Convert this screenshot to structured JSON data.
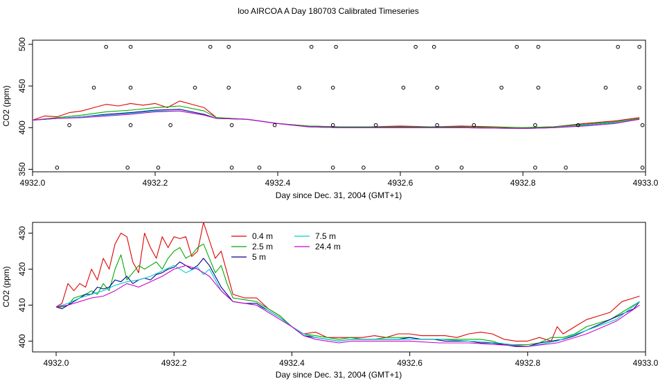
{
  "figure": {
    "title": "loo AIRCOA A  Day 180703  Calibrated Timeseries"
  },
  "chart_data": [
    {
      "type": "line",
      "title": "loo AIRCOA A  Day 180703  Calibrated Timeseries",
      "xlabel": "Day since Dec. 31, 2004 (GMT+1)",
      "ylabel": "CO2 (ppm)",
      "xlim": [
        4932.0,
        4933.0
      ],
      "ylim": [
        347,
        505
      ],
      "xticks": [
        "4932.0",
        "4932.2",
        "4932.4",
        "4932.6",
        "4932.8",
        "4933.0"
      ],
      "yticks": [
        "350",
        "400",
        "450",
        "500"
      ],
      "grid": false,
      "series": [
        {
          "name": "0.4 m",
          "color": "#dd0000",
          "x": [
            4932.0,
            4932.02,
            4932.04,
            4932.06,
            4932.08,
            4932.1,
            4932.12,
            4932.14,
            4932.16,
            4932.18,
            4932.2,
            4932.22,
            4932.24,
            4932.26,
            4932.28,
            4932.3,
            4932.35,
            4932.4,
            4932.45,
            4932.5,
            4932.55,
            4932.6,
            4932.65,
            4932.7,
            4932.75,
            4932.8,
            4932.85,
            4932.9,
            4932.95,
            4932.99
          ],
          "y": [
            409,
            414,
            413,
            418,
            420,
            424,
            428,
            426,
            429,
            427,
            429,
            424,
            432,
            428,
            424,
            412,
            410,
            405,
            402,
            401,
            401,
            402,
            401,
            402,
            401,
            400,
            401,
            405,
            408,
            412
          ]
        },
        {
          "name": "2.5 m",
          "color": "#00aa00",
          "x": [
            4932.0,
            4932.04,
            4932.08,
            4932.12,
            4932.16,
            4932.2,
            4932.24,
            4932.28,
            4932.3,
            4932.35,
            4932.4,
            4932.45,
            4932.5,
            4932.6,
            4932.7,
            4932.8,
            4932.85,
            4932.9,
            4932.95,
            4932.99
          ],
          "y": [
            409,
            412,
            415,
            419,
            421,
            424,
            426,
            420,
            412,
            410,
            405,
            402,
            401,
            401,
            401,
            400,
            401,
            404,
            407,
            411
          ]
        },
        {
          "name": "5 m",
          "color": "#00008b",
          "x": [
            4932.0,
            4932.04,
            4932.08,
            4932.12,
            4932.16,
            4932.2,
            4932.24,
            4932.28,
            4932.3,
            4932.35,
            4932.4,
            4932.45,
            4932.5,
            4932.6,
            4932.7,
            4932.8,
            4932.85,
            4932.9,
            4932.95,
            4932.99
          ],
          "y": [
            409,
            411,
            413,
            416,
            418,
            421,
            422,
            416,
            411,
            410,
            405,
            401,
            400,
            400,
            400,
            399,
            400,
            403,
            406,
            410
          ]
        },
        {
          "name": "7.5 m",
          "color": "#00cccc",
          "x": [
            4932.0,
            4932.04,
            4932.08,
            4932.12,
            4932.16,
            4932.2,
            4932.24,
            4932.28,
            4932.3,
            4932.35,
            4932.4,
            4932.45,
            4932.5,
            4932.6,
            4932.7,
            4932.8,
            4932.85,
            4932.9,
            4932.95,
            4932.99
          ],
          "y": [
            409,
            411,
            413,
            415,
            417,
            420,
            420,
            415,
            411,
            410,
            405,
            401,
            400,
            400,
            400,
            399,
            400,
            403,
            406,
            410
          ]
        },
        {
          "name": "24.4 m",
          "color": "#cc00cc",
          "x": [
            4932.0,
            4932.04,
            4932.08,
            4932.12,
            4932.16,
            4932.2,
            4932.24,
            4932.28,
            4932.3,
            4932.35,
            4932.4,
            4932.45,
            4932.5,
            4932.6,
            4932.7,
            4932.8,
            4932.85,
            4932.9,
            4932.95,
            4932.99
          ],
          "y": [
            409,
            411,
            412,
            414,
            416,
            419,
            420,
            415,
            411,
            410,
            405,
            401,
            400,
            400,
            400,
            399,
            400,
            402,
            405,
            410
          ]
        },
        {
          "name": "",
          "type": "scatter",
          "marker": "open-circle",
          "color": "#000000",
          "x": [
            4932.04,
            4932.06,
            4932.1,
            4932.12,
            4932.155,
            4932.16,
            4932.16,
            4932.16,
            4932.205,
            4932.225,
            4932.265,
            4932.29,
            4932.32,
            4932.32,
            4932.325,
            4932.325,
            4932.37,
            4932.395,
            4932.435,
            4932.455,
            4932.49,
            4932.49,
            4932.49,
            4932.495,
            4932.54,
            4932.56,
            4932.605,
            4932.625,
            4932.655,
            4932.66,
            4932.66,
            4932.66,
            4932.7,
            4932.72,
            4932.765,
            4932.79,
            4932.82,
            4932.82,
            4932.825,
            4932.825,
            4932.87,
            4932.89,
            4932.935,
            4932.955,
            4932.99,
            4932.99,
            4932.995,
            4932.995
          ],
          "y": [
            352,
            403,
            448,
            497,
            352,
            403,
            448,
            497,
            352,
            403,
            448,
            497,
            497,
            448,
            403,
            352,
            352,
            403,
            448,
            497,
            352,
            403,
            448,
            497,
            352,
            403,
            448,
            497,
            497,
            448,
            403,
            352,
            352,
            403,
            448,
            497,
            352,
            403,
            448,
            497,
            352,
            403,
            448,
            497,
            497,
            448,
            403,
            352
          ]
        }
      ]
    },
    {
      "type": "line",
      "xlabel": "Day since Dec. 31, 2004 (GMT+1)",
      "ylabel": "CO2 (ppm)",
      "xlim": [
        4931.96,
        4933.0
      ],
      "ylim": [
        397,
        433
      ],
      "xticks": [
        "4932.0",
        "4932.2",
        "4932.4",
        "4932.6",
        "4932.8",
        "4933.0"
      ],
      "yticks": [
        "400",
        "410",
        "420",
        "430"
      ],
      "grid": false,
      "legend": "top-center",
      "series": [
        {
          "name": "0.4 m",
          "color": "#dd0000",
          "x": [
            4932.0,
            4932.01,
            4932.02,
            4932.03,
            4932.04,
            4932.05,
            4932.06,
            4932.07,
            4932.08,
            4932.09,
            4932.1,
            4932.11,
            4932.12,
            4932.13,
            4932.14,
            4932.15,
            4932.16,
            4932.17,
            4932.18,
            4932.19,
            4932.2,
            4932.21,
            4932.22,
            4932.23,
            4932.24,
            4932.25,
            4932.26,
            4932.27,
            4932.28,
            4932.29,
            4932.3,
            4932.32,
            4932.34,
            4932.36,
            4932.38,
            4932.4,
            4932.42,
            4932.44,
            4932.46,
            4932.48,
            4932.5,
            4932.52,
            4932.54,
            4932.56,
            4932.58,
            4932.6,
            4932.62,
            4932.64,
            4932.66,
            4932.68,
            4932.7,
            4932.72,
            4932.74,
            4932.76,
            4932.78,
            4932.8,
            4932.82,
            4932.84,
            4932.85,
            4932.86,
            4932.88,
            4932.9,
            4932.92,
            4932.94,
            4932.96,
            4932.98,
            4932.99
          ],
          "y": [
            409.5,
            410.5,
            416,
            414,
            416,
            415,
            420,
            417,
            423,
            420,
            427,
            430,
            429,
            422,
            419,
            430,
            426,
            423,
            429,
            426,
            429,
            428.5,
            429,
            423.5,
            425,
            433,
            428,
            423,
            425,
            419,
            413,
            412,
            412,
            409,
            407,
            404,
            402,
            402.5,
            401,
            401,
            401,
            401,
            401.5,
            401,
            402,
            402,
            401.5,
            401.5,
            401.5,
            401,
            402,
            402.5,
            402,
            400.5,
            400,
            400,
            401,
            400,
            404,
            402,
            404,
            406,
            407,
            408,
            411,
            412,
            412.5
          ]
        },
        {
          "name": "2.5 m",
          "color": "#00aa00",
          "x": [
            4932.0,
            4932.01,
            4932.02,
            4932.03,
            4932.04,
            4932.05,
            4932.06,
            4932.07,
            4932.08,
            4932.09,
            4932.1,
            4932.11,
            4932.12,
            4932.13,
            4932.14,
            4932.15,
            4932.16,
            4932.17,
            4932.18,
            4932.19,
            4932.2,
            4932.21,
            4932.22,
            4932.23,
            4932.24,
            4932.25,
            4932.26,
            4932.27,
            4932.28,
            4932.29,
            4932.3,
            4932.32,
            4932.34,
            4932.36,
            4932.38,
            4932.4,
            4932.42,
            4932.44,
            4932.46,
            4932.48,
            4932.5,
            4932.52,
            4932.54,
            4932.56,
            4932.58,
            4932.6,
            4932.62,
            4932.64,
            4932.66,
            4932.68,
            4932.7,
            4932.72,
            4932.74,
            4932.76,
            4932.78,
            4932.8,
            4932.82,
            4932.84,
            4932.86,
            4932.88,
            4932.9,
            4932.92,
            4932.94,
            4932.96,
            4932.98,
            4932.99
          ],
          "y": [
            409.5,
            409.5,
            410,
            412,
            412.5,
            413,
            414,
            413,
            416,
            414,
            420,
            424,
            417,
            419,
            421,
            420,
            421,
            422,
            420,
            423,
            425,
            426,
            423,
            424,
            426,
            427,
            423,
            419,
            421,
            416,
            412,
            411.5,
            411,
            409,
            407,
            404,
            402,
            401.5,
            401,
            400.5,
            401,
            400.5,
            400.5,
            401,
            401,
            401,
            400.5,
            400.5,
            400.5,
            400.5,
            400.5,
            400.5,
            400,
            399,
            399,
            399,
            399.5,
            401,
            401,
            402,
            404,
            405,
            406,
            408,
            410,
            411
          ]
        },
        {
          "name": "5 m",
          "color": "#00008b",
          "x": [
            4932.0,
            4932.01,
            4932.02,
            4932.03,
            4932.04,
            4932.05,
            4932.06,
            4932.07,
            4932.08,
            4932.09,
            4932.1,
            4932.11,
            4932.12,
            4932.13,
            4932.14,
            4932.15,
            4932.16,
            4932.17,
            4932.18,
            4932.19,
            4932.2,
            4932.21,
            4932.22,
            4932.23,
            4932.24,
            4932.25,
            4932.26,
            4932.27,
            4932.28,
            4932.29,
            4932.3,
            4932.32,
            4932.34,
            4932.36,
            4932.38,
            4932.4,
            4932.42,
            4932.44,
            4932.46,
            4932.48,
            4932.5,
            4932.52,
            4932.54,
            4932.56,
            4932.58,
            4932.6,
            4932.62,
            4932.64,
            4932.66,
            4932.68,
            4932.7,
            4932.72,
            4932.74,
            4932.76,
            4932.78,
            4932.8,
            4932.82,
            4932.84,
            4932.86,
            4932.88,
            4932.9,
            4932.92,
            4932.94,
            4932.96,
            4932.98,
            4932.99
          ],
          "y": [
            409.5,
            409,
            410,
            411,
            412,
            413,
            413,
            415,
            414.5,
            415,
            417,
            416.5,
            418,
            416,
            417,
            417.5,
            417,
            418.5,
            419,
            420,
            420.5,
            422,
            421,
            420,
            421,
            423,
            421,
            418,
            415,
            413,
            411,
            410.5,
            410.5,
            408.5,
            406.5,
            404,
            401.5,
            401,
            400.5,
            400,
            400.5,
            400.5,
            400.5,
            400.5,
            400.5,
            401,
            400.5,
            400.5,
            400,
            400,
            400,
            399.5,
            399.5,
            399,
            398.5,
            398.5,
            399.5,
            400,
            400.5,
            401.5,
            403,
            404.5,
            406,
            407.5,
            409,
            411
          ]
        },
        {
          "name": "7.5 m",
          "color": "#00cccc",
          "x": [
            4932.0,
            4932.02,
            4932.04,
            4932.06,
            4932.08,
            4932.1,
            4932.12,
            4932.14,
            4932.16,
            4932.18,
            4932.2,
            4932.22,
            4932.24,
            4932.25,
            4932.26,
            4932.28,
            4932.3,
            4932.32,
            4932.34,
            4932.36,
            4932.38,
            4932.4,
            4932.42,
            4932.44,
            4932.46,
            4932.48,
            4932.5,
            4932.55,
            4932.6,
            4932.65,
            4932.7,
            4932.75,
            4932.8,
            4932.85,
            4932.9,
            4932.95,
            4932.99
          ],
          "y": [
            409.5,
            410.5,
            412,
            413,
            414,
            415.5,
            416.5,
            417,
            418,
            419.5,
            421,
            419,
            420.5,
            418.5,
            420,
            414,
            411,
            410.5,
            410,
            408.5,
            406.5,
            404,
            402,
            401,
            400.5,
            400,
            400.5,
            400.5,
            400.5,
            400.5,
            400,
            399.5,
            398.5,
            400,
            403,
            406,
            411
          ]
        },
        {
          "name": "24.4 m",
          "color": "#cc00cc",
          "x": [
            4932.0,
            4932.02,
            4932.04,
            4932.06,
            4932.08,
            4932.1,
            4932.12,
            4932.14,
            4932.16,
            4932.18,
            4932.2,
            4932.22,
            4932.24,
            4932.26,
            4932.28,
            4932.3,
            4932.32,
            4932.34,
            4932.36,
            4932.38,
            4932.4,
            4932.42,
            4932.44,
            4932.46,
            4932.48,
            4932.5,
            4932.55,
            4932.6,
            4932.65,
            4932.7,
            4932.75,
            4932.8,
            4932.85,
            4932.9,
            4932.95,
            4932.99
          ],
          "y": [
            409.5,
            410,
            411,
            412,
            412.5,
            414,
            416,
            415,
            416.5,
            418,
            420,
            421,
            420,
            418,
            414,
            411,
            410.5,
            410,
            408,
            406,
            404,
            401.5,
            400.5,
            400,
            399.5,
            400,
            400,
            400,
            399.5,
            399.5,
            399,
            398.5,
            399.5,
            402,
            405.5,
            410
          ]
        }
      ]
    }
  ]
}
